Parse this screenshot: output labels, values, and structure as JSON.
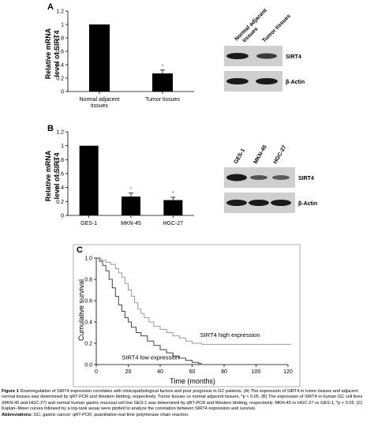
{
  "panels": {
    "A": {
      "letter": "A"
    },
    "B": {
      "letter": "B"
    },
    "C": {
      "letter": "C"
    }
  },
  "chart_data": [
    {
      "type": "bar",
      "panel": "A",
      "ylabel_line1": "Relative mRNA",
      "ylabel_line2": "level of SIRT4",
      "ylim": [
        0,
        1.2
      ],
      "yticks": [
        "0",
        "0.2",
        "0.4",
        "0.6",
        "0.8",
        "1",
        "1.2"
      ],
      "categories": [
        "Normal adjacent tissues",
        "Tumor tissues"
      ],
      "category_lines": [
        [
          "Normal adjacent",
          "tissues"
        ],
        [
          "Tumor tissues"
        ]
      ],
      "values": [
        1.0,
        0.27
      ],
      "errors": [
        0,
        0.05
      ],
      "significance": [
        "",
        "*"
      ]
    },
    {
      "type": "bar",
      "panel": "B",
      "ylabel_line1": "Relative mRNA",
      "ylabel_line2": "level of SIRT4",
      "ylim": [
        0,
        1.2
      ],
      "yticks": [
        "0",
        "0.2",
        "0.4",
        "0.6",
        "0.8",
        "1",
        "1.2"
      ],
      "categories": [
        "GES-1",
        "MKN-45",
        "HGC-27"
      ],
      "values": [
        1.0,
        0.27,
        0.22
      ],
      "errors": [
        0,
        0.05,
        0.04
      ],
      "significance": [
        "",
        "*",
        "*"
      ]
    },
    {
      "type": "line",
      "panel": "C",
      "ylabel": "Cumulative survival",
      "xlabel": "Time (months)",
      "xlim": [
        0,
        120
      ],
      "ylim": [
        0,
        1.0
      ],
      "xticks": [
        "0",
        "20",
        "40",
        "60",
        "80",
        "100",
        "120"
      ],
      "yticks": [
        "0.0",
        "0.2",
        "0.4",
        "0.6",
        "0.8",
        "1.0"
      ],
      "series": [
        {
          "name": "SIRT4 high expression",
          "color": "#999999",
          "points": [
            [
              0,
              1.0
            ],
            [
              3,
              0.98
            ],
            [
              6,
              0.96
            ],
            [
              9,
              0.94
            ],
            [
              12,
              0.9
            ],
            [
              14,
              0.86
            ],
            [
              16,
              0.82
            ],
            [
              18,
              0.76
            ],
            [
              20,
              0.7
            ],
            [
              22,
              0.64
            ],
            [
              24,
              0.58
            ],
            [
              26,
              0.52
            ],
            [
              28,
              0.48
            ],
            [
              30,
              0.44
            ],
            [
              33,
              0.4
            ],
            [
              36,
              0.36
            ],
            [
              40,
              0.33
            ],
            [
              44,
              0.3
            ],
            [
              48,
              0.27
            ],
            [
              52,
              0.25
            ],
            [
              56,
              0.22
            ],
            [
              60,
              0.2
            ],
            [
              66,
              0.19
            ],
            [
              80,
              0.19
            ],
            [
              100,
              0.19
            ],
            [
              122,
              0.19
            ]
          ]
        },
        {
          "name": "SIRT4 low expression",
          "color": "#444444",
          "points": [
            [
              0,
              1.0
            ],
            [
              2,
              0.97
            ],
            [
              4,
              0.93
            ],
            [
              6,
              0.88
            ],
            [
              8,
              0.8
            ],
            [
              10,
              0.72
            ],
            [
              12,
              0.64
            ],
            [
              14,
              0.56
            ],
            [
              16,
              0.5
            ],
            [
              18,
              0.44
            ],
            [
              20,
              0.4
            ],
            [
              22,
              0.35
            ],
            [
              25,
              0.3
            ],
            [
              28,
              0.27
            ],
            [
              32,
              0.22
            ],
            [
              36,
              0.18
            ],
            [
              40,
              0.14
            ],
            [
              44,
              0.11
            ],
            [
              48,
              0.08
            ],
            [
              52,
              0.06
            ],
            [
              56,
              0.04
            ],
            [
              60,
              0.02
            ],
            [
              64,
              0.01
            ],
            [
              66,
              0.01
            ]
          ]
        }
      ],
      "annotations": [
        "SIRT4 high expression",
        "SIRT4 low expression"
      ]
    }
  ],
  "blots": {
    "A": {
      "lanes": [
        "Normal adjacent tissues",
        "Tumor tissues"
      ],
      "rows": [
        "SIRT4",
        "β-Actin"
      ]
    },
    "B": {
      "lanes": [
        "GES-1",
        "MKN-45",
        "HGC-27"
      ],
      "rows": [
        "SIRT4",
        "β-Actin"
      ]
    }
  },
  "caption": {
    "lead": "Figure 1",
    "body": "Downregulation of SIRT4 expression correlates with clinicopathological factors and poor prognosis in GC patients. (A) The expression of SIRT4 in tumor tissues and adjacent normal tissues was determined by qRT-PCR and Western blotting, respectively. Tumor tissues vs normal adjacent tissues, *p < 0.05. (B) The expression of SIRT4 in human GC cell lines (MKN-45 and HGC-27) and normal human gastric mucosal cell line GES-1 was determined by qRT-PCR and Western blotting, respectively. MKN-45 or HGC-27 vs GES-1, *p < 0.05. (C) Kaplan–Meier curves followed by a log-rank assay were plotted to analyze the correlation between SIRT4 expression and survival.",
    "abbr_heading": "Abbreviations:",
    "abbr_text": "GC, gastric cancer; qRT-PCR, quantitative real-time polymerase chain reaction."
  }
}
